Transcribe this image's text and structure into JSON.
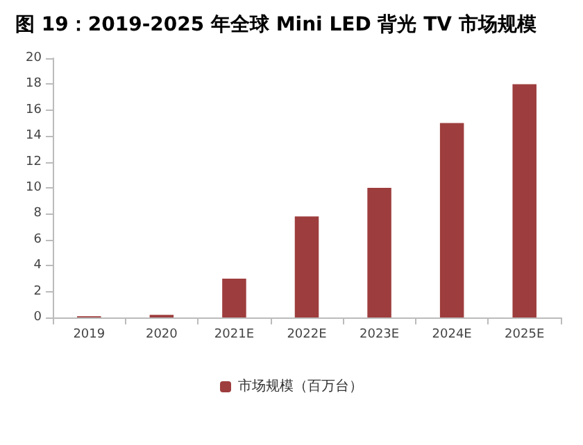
{
  "chart_data": {
    "type": "bar",
    "title": "图 19：2019-2025 年全球 Mini LED 背光 TV 市场规模",
    "categories": [
      "2019",
      "2020",
      "2021E",
      "2022E",
      "2023E",
      "2024E",
      "2025E"
    ],
    "series": [
      {
        "name": "市场规模（百万台）",
        "color": "#9e3d3d",
        "values": [
          0.1,
          0.2,
          3,
          7.8,
          10,
          15,
          18
        ]
      }
    ],
    "ylim": [
      0,
      20
    ],
    "yticks": [
      0,
      2,
      4,
      6,
      8,
      10,
      12,
      14,
      16,
      18,
      20
    ],
    "grid": false,
    "legend": "bottom"
  }
}
